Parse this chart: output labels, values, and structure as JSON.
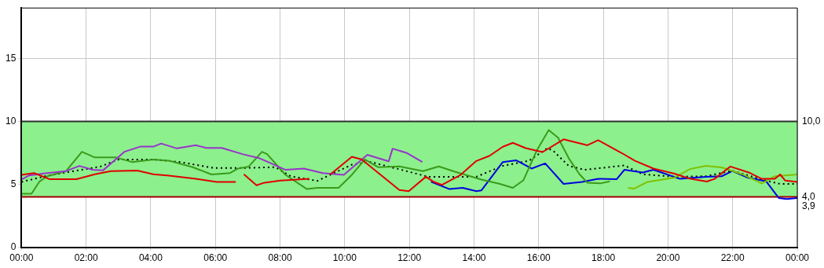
{
  "chart_data": {
    "type": "line",
    "xlim": [
      0,
      24
    ],
    "ylim": [
      0,
      19
    ],
    "xticks": [
      {
        "value": 0,
        "label": "00:00"
      },
      {
        "value": 2,
        "label": "02:00"
      },
      {
        "value": 4,
        "label": "04:00"
      },
      {
        "value": 6,
        "label": "06:00"
      },
      {
        "value": 8,
        "label": "08:00"
      },
      {
        "value": 10,
        "label": "10:00"
      },
      {
        "value": 12,
        "label": "12:00"
      },
      {
        "value": 14,
        "label": "14:00"
      },
      {
        "value": 16,
        "label": "16:00"
      },
      {
        "value": 18,
        "label": "18:00"
      },
      {
        "value": 20,
        "label": "20:00"
      },
      {
        "value": 22,
        "label": "22:00"
      },
      {
        "value": 24,
        "label": "00:00"
      }
    ],
    "yticks": [
      0,
      5,
      10,
      15
    ],
    "grid": true,
    "legend": false,
    "marker": "none",
    "bands": [
      {
        "axis": "y",
        "from": 4,
        "to": 10,
        "color": "#8cf08c"
      }
    ],
    "ref_lines": [
      {
        "axis": "y",
        "value": 10,
        "label": "10,0",
        "color": "#303030"
      },
      {
        "axis": "y",
        "value": 4,
        "label": "4,0",
        "color": "#a00000"
      }
    ],
    "annotations": [
      {
        "text": "3,9",
        "x": 24,
        "y": 3.9
      }
    ],
    "series": [
      {
        "color": "#e00000",
        "x": [
          0,
          0.39,
          0.88,
          1.7,
          2.27,
          2.76,
          3.58,
          4.08,
          4.57,
          5.39,
          6.04,
          6.63,
          6.75,
          6.88,
          7.27,
          7.52,
          8.01,
          8.91,
          9.2,
          9.56,
          10.22,
          10.52,
          11.69,
          11.98,
          12.51,
          12.75,
          13.0,
          13.57,
          14.07,
          14.48,
          14.89,
          15.2,
          15.6,
          16.12,
          16.77,
          17.5,
          17.84,
          18.57,
          18.98,
          19.55,
          20.2,
          20.7,
          21.2,
          21.44,
          21.93,
          22.5,
          22.9,
          23.3,
          23.47,
          23.63,
          24
        ],
        "values": [
          5.75,
          5.89,
          5.4,
          5.4,
          5.8,
          6.05,
          6.09,
          5.8,
          5.68,
          5.44,
          5.19,
          5.19,
          null,
          5.8,
          4.92,
          5.13,
          5.3,
          5.44,
          null,
          5.8,
          7.18,
          6.98,
          4.55,
          4.45,
          5.6,
          5.2,
          4.95,
          5.72,
          6.85,
          7.26,
          7.98,
          8.29,
          7.87,
          7.56,
          8.57,
          8.1,
          8.5,
          7.48,
          6.86,
          6.25,
          5.84,
          5.43,
          5.22,
          5.43,
          6.41,
          5.94,
          5.43,
          5.43,
          5.78,
          5.29,
          5.19
        ]
      },
      {
        "color": "#9933cc",
        "x": [
          0,
          0.23,
          0.8,
          1.38,
          1.79,
          2.2,
          2.52,
          3.18,
          3.67,
          4.08,
          4.32,
          4.81,
          5.39,
          5.72,
          6.2,
          6.86,
          7.36,
          7.6,
          8.17,
          8.74,
          9.32,
          9.97,
          10.7,
          11.36,
          11.48,
          11.93,
          12.4
        ],
        "values": [
          5.38,
          5.7,
          5.89,
          6.05,
          6.46,
          6.15,
          6.1,
          7.58,
          7.99,
          7.99,
          8.24,
          7.85,
          8.1,
          7.89,
          7.89,
          7.38,
          7.07,
          6.8,
          6.15,
          6.25,
          5.89,
          5.75,
          7.34,
          6.83,
          7.83,
          7.48,
          6.77
        ]
      },
      {
        "color": "#3a9a1a",
        "x": [
          0,
          0.31,
          0.56,
          0.8,
          1.38,
          1.87,
          2.27,
          2.93,
          3.42,
          4.08,
          4.57,
          5.3,
          5.88,
          6.45,
          6.7,
          7.03,
          7.44,
          7.6,
          8.17,
          8.83,
          9.15,
          9.81,
          10.22,
          10.62,
          11.03,
          11.69,
          12.42,
          12.91,
          13.41,
          14.23,
          14.8,
          15.2,
          15.53,
          15.94,
          16.31,
          16.6,
          16.93,
          17.25,
          17.5,
          17.91,
          18.2
        ],
        "values": [
          4.25,
          4.25,
          5.23,
          5.64,
          6.05,
          7.58,
          7.13,
          7.13,
          6.77,
          6.97,
          6.87,
          6.36,
          5.78,
          5.89,
          6.25,
          6.41,
          7.58,
          7.4,
          5.75,
          4.62,
          4.72,
          4.72,
          5.75,
          6.98,
          6.36,
          6.42,
          6.05,
          6.42,
          6.0,
          5.37,
          5.03,
          4.72,
          5.33,
          7.68,
          9.31,
          8.7,
          7.07,
          5.84,
          5.13,
          5.07,
          5.23
        ]
      },
      {
        "color": "#80c000",
        "x": [
          18.76,
          18.96,
          19.37,
          20.2,
          20.68,
          21.17,
          21.66,
          22.3,
          22.9,
          23.31,
          24
        ],
        "values": [
          4.72,
          4.66,
          5.19,
          5.53,
          6.21,
          6.46,
          6.34,
          5.8,
          5.07,
          5.64,
          5.78
        ]
      },
      {
        "color": "#0000e0",
        "x": [
          12.67,
          13.24,
          13.65,
          14.07,
          14.23,
          14.89,
          15.3,
          15.78,
          16.2,
          16.77,
          17.34,
          17.84,
          18.41,
          18.65,
          19.22,
          19.55,
          20.37,
          21.17,
          21.66,
          21.99,
          22.47,
          23.04,
          23.43,
          23.67,
          24
        ],
        "values": [
          5.2,
          4.62,
          4.72,
          4.45,
          4.52,
          6.77,
          6.91,
          6.25,
          6.66,
          5.03,
          5.19,
          5.43,
          5.4,
          6.15,
          5.94,
          6.15,
          5.43,
          5.6,
          5.64,
          6.05,
          5.53,
          5.23,
          3.9,
          3.83,
          3.9
        ]
      },
      {
        "color": "#000000",
        "line_style": "dotted",
        "x": [
          0,
          0.8,
          1.62,
          2.44,
          3.01,
          4.08,
          4.9,
          5.96,
          6.77,
          7.85,
          8.33,
          9.15,
          10.22,
          10.8,
          11.6,
          12.58,
          14.07,
          14.89,
          15.7,
          16.27,
          16.45,
          16.93,
          17.42,
          18.65,
          19.22,
          20.2,
          21.17,
          21.99,
          22.97,
          23.47,
          24
        ],
        "values": [
          5.19,
          5.68,
          6.05,
          6.41,
          6.97,
          6.97,
          6.77,
          6.29,
          6.29,
          6.36,
          5.64,
          5.27,
          6.56,
          6.77,
          6.25,
          5.6,
          5.6,
          6.46,
          6.87,
          7.87,
          7.66,
          6.46,
          6.15,
          6.5,
          5.8,
          5.6,
          5.64,
          6.08,
          5.33,
          5.03,
          5.03
        ]
      }
    ]
  }
}
